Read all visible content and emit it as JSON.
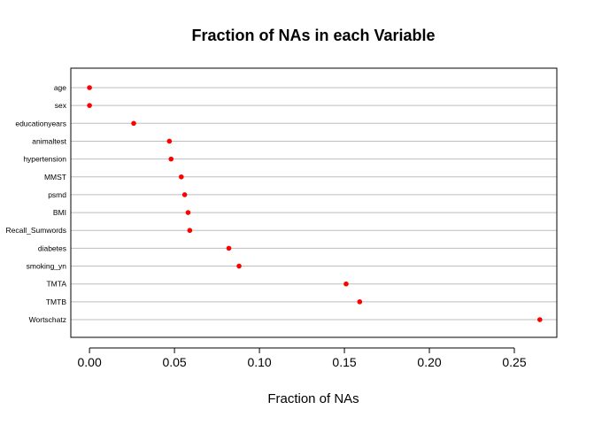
{
  "chart_data": {
    "type": "scatter",
    "title": "Fraction of NAs in each Variable",
    "xlabel": "Fraction of NAs",
    "ylabel": "",
    "categories": [
      "age",
      "sex",
      "educationyears",
      "animaltest",
      "hypertension",
      "MMST",
      "psmd",
      "BMI",
      "Recall_Sumwords",
      "diabetes",
      "smoking_yn",
      "TMTA",
      "TMTB",
      "Wortschatz"
    ],
    "values": [
      0.0,
      0.0,
      0.026,
      0.047,
      0.048,
      0.054,
      0.056,
      0.058,
      0.059,
      0.082,
      0.088,
      0.151,
      0.159,
      0.265
    ],
    "xlim": [
      -0.011,
      0.275
    ],
    "xticks": [
      "0.00",
      "0.05",
      "0.10",
      "0.15",
      "0.20",
      "0.25"
    ],
    "xtick_values": [
      0.0,
      0.05,
      0.1,
      0.15,
      0.2,
      0.25
    ],
    "grid": true,
    "point_color": "#ff0000",
    "grid_color": "#bebebe"
  }
}
